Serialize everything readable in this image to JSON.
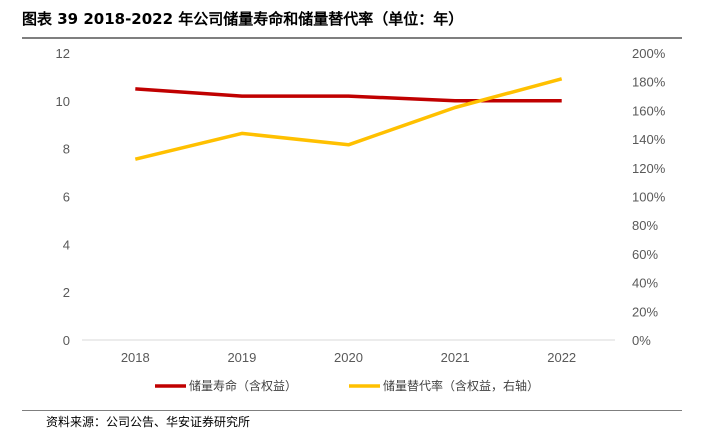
{
  "title": "图表 39  2018-2022 年公司储量寿命和储量替代率（单位：年）",
  "source": "资料来源：公司公告、华安证券研究所",
  "chart_data": {
    "type": "line",
    "x": [
      "2018",
      "2019",
      "2020",
      "2021",
      "2022"
    ],
    "y_left": {
      "ticks": [
        "0",
        "2",
        "4",
        "6",
        "8",
        "10",
        "12"
      ],
      "lim": [
        0,
        12
      ]
    },
    "y_right": {
      "ticks": [
        "0%",
        "20%",
        "40%",
        "60%",
        "80%",
        "100%",
        "120%",
        "140%",
        "160%",
        "180%",
        "200%"
      ],
      "lim": [
        0,
        2.0
      ]
    },
    "grid": false,
    "legend_position": "bottom",
    "series": [
      {
        "name": "储量寿命（含权益）",
        "axis": "left",
        "color": "#c00000",
        "values": [
          10.5,
          10.2,
          10.2,
          10.0,
          10.0
        ]
      },
      {
        "name": "储量替代率（含权益，右轴）",
        "axis": "right",
        "color": "#ffc000",
        "values": [
          1.26,
          1.44,
          1.36,
          1.62,
          1.82
        ]
      }
    ]
  }
}
